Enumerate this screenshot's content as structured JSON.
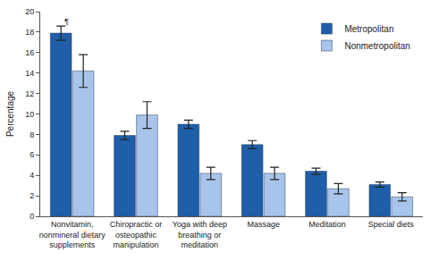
{
  "chart_data": {
    "type": "bar",
    "y_label": "Percentage",
    "categories": [
      "Nonvitamin, nonmineral dietary supplements",
      "Chiropractic or osteopathic manipulation",
      "Yoga with deep breathing or meditation",
      "Massage",
      "Meditation",
      "Special diets"
    ],
    "series": [
      {
        "name": "Metropolitan",
        "color": "#1f5ea8",
        "values": [
          17.9,
          7.9,
          9.0,
          7.0,
          4.4,
          3.1
        ],
        "errors": [
          0.7,
          0.4,
          0.4,
          0.4,
          0.3,
          0.25
        ]
      },
      {
        "name": "Nonmetropolitan",
        "color": "#a9c4ea",
        "values": [
          14.2,
          9.9,
          4.2,
          4.2,
          2.7,
          1.9
        ],
        "errors": [
          1.6,
          1.3,
          0.6,
          0.6,
          0.5,
          0.4
        ]
      }
    ],
    "ylim": [
      0,
      20
    ],
    "yticks": [
      0,
      2,
      4,
      6,
      8,
      10,
      12,
      14,
      16,
      18,
      20
    ],
    "grid": false,
    "legend": "upper right",
    "annotations": [
      {
        "text": "¶",
        "category": "Nonvitamin, nonmineral dietary supplements",
        "series": "Metropolitan"
      }
    ]
  }
}
